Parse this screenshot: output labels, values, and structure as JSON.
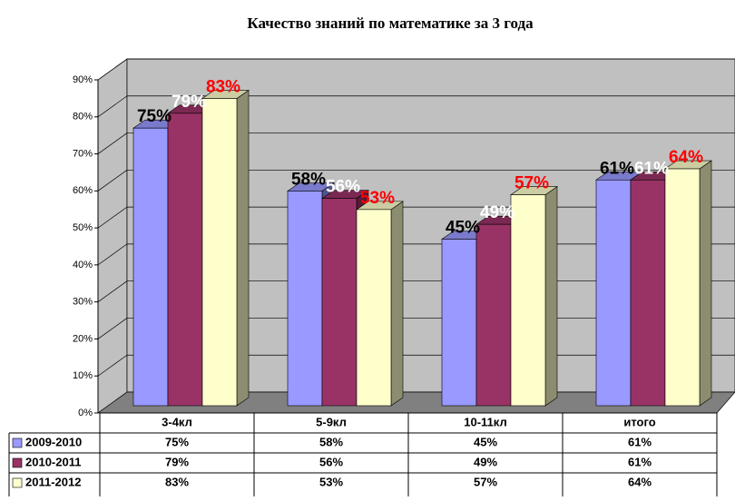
{
  "chart_data": {
    "type": "bar",
    "title": "Качество знаний по математике за 3 года",
    "categories": [
      "3-4кл",
      "5-9кл",
      "10-11кл",
      "итого"
    ],
    "series": [
      {
        "name": "2009-2010",
        "color": "#9999ff",
        "label_color": "#000000",
        "values": [
          75,
          58,
          45,
          61
        ],
        "value_labels": [
          "75%",
          "58%",
          "45%",
          "61%"
        ]
      },
      {
        "name": "2010-2011",
        "color": "#993366",
        "label_color": "#ffffff",
        "values": [
          79,
          56,
          49,
          61
        ],
        "value_labels": [
          "79%",
          "56%",
          "49%",
          "61%"
        ]
      },
      {
        "name": "2011-2012",
        "color": "#ffffcc",
        "label_color": "#ff0000",
        "values": [
          83,
          53,
          57,
          64
        ],
        "value_labels": [
          "83%",
          "53%",
          "57%",
          "64%"
        ]
      }
    ],
    "ylim": [
      0,
      90
    ],
    "yticks": [
      {
        "value": 0,
        "label": "0%"
      },
      {
        "value": 10,
        "label": "10%"
      },
      {
        "value": 20,
        "label": "20%"
      },
      {
        "value": 30,
        "label": "30%"
      },
      {
        "value": 40,
        "label": "40%"
      },
      {
        "value": 50,
        "label": "50%"
      },
      {
        "value": 60,
        "label": "60%"
      },
      {
        "value": 70,
        "label": "70%"
      },
      {
        "value": 80,
        "label": "80%"
      },
      {
        "value": 90,
        "label": "90%"
      }
    ],
    "grid": true
  }
}
